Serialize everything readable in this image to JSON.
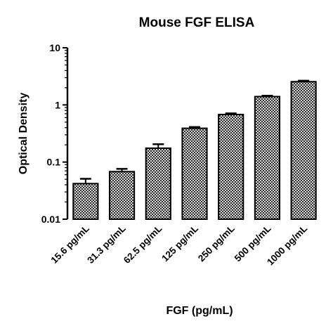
{
  "chart_data": {
    "type": "bar",
    "title": "Mouse FGF ELISA",
    "xlabel": "FGF (pg/mL)",
    "ylabel": "Optical Density",
    "yscale": "log",
    "ylim": [
      0.01,
      10
    ],
    "yticks": [
      {
        "value": 0.01,
        "label": "0.01"
      },
      {
        "value": 0.1,
        "label": "0.1"
      },
      {
        "value": 1,
        "label": "1"
      },
      {
        "value": 10,
        "label": "10"
      }
    ],
    "categories": [
      "15.6 pg/mL",
      "31.3 pg/mL",
      "62.5 pg/mL",
      "125 pg/mL",
      "250 pg/mL",
      "500 pg/mL",
      "1000 pg/mL"
    ],
    "values": [
      0.042,
      0.068,
      0.175,
      0.39,
      0.68,
      1.4,
      2.55
    ],
    "error_upper": [
      0.051,
      0.076,
      0.205,
      0.41,
      0.71,
      1.45,
      2.65
    ],
    "bar_fill": "checkered gray",
    "grid": false,
    "legend": "none"
  }
}
